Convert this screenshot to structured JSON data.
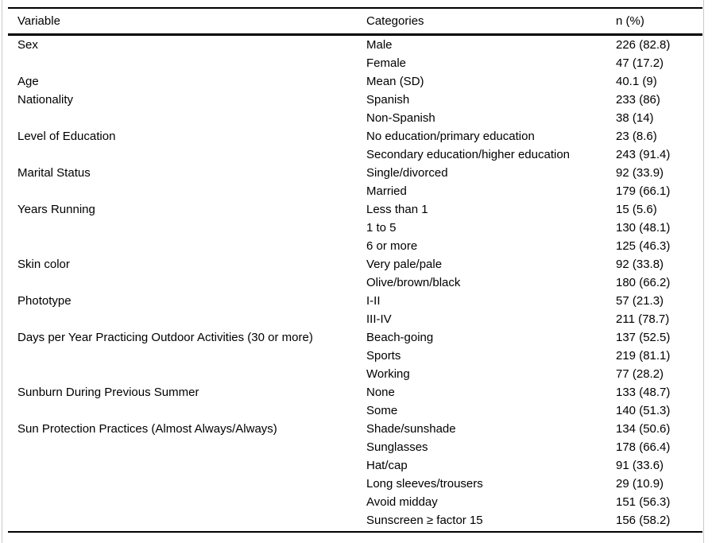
{
  "table": {
    "columns": [
      "Variable",
      "Categories",
      "n (%)"
    ],
    "rows": [
      {
        "variable": "Sex",
        "category": "Male",
        "n": "226 (82.8)"
      },
      {
        "variable": "",
        "category": "Female",
        "n": "47 (17.2)"
      },
      {
        "variable": "Age",
        "category": "Mean (SD)",
        "n": "40.1 (9)"
      },
      {
        "variable": "Nationality",
        "category": "Spanish",
        "n": "233 (86)"
      },
      {
        "variable": "",
        "category": "Non-Spanish",
        "n": "38 (14)"
      },
      {
        "variable": "Level of Education",
        "category": "No education/primary education",
        "n": "23 (8.6)"
      },
      {
        "variable": "",
        "category": "Secondary education/higher education",
        "n": "243 (91.4)"
      },
      {
        "variable": "Marital Status",
        "category": "Single/divorced",
        "n": "92 (33.9)"
      },
      {
        "variable": "",
        "category": "Married",
        "n": "179 (66.1)"
      },
      {
        "variable": "Years Running",
        "category": "Less than 1",
        "n": "15 (5.6)"
      },
      {
        "variable": "",
        "category": "1 to 5",
        "n": "130 (48.1)"
      },
      {
        "variable": "",
        "category": "6 or more",
        "n": "125 (46.3)"
      },
      {
        "variable": "Skin color",
        "category": "Very pale/pale",
        "n": "92 (33.8)"
      },
      {
        "variable": "",
        "category": "Olive/brown/black",
        "n": "180 (66.2)"
      },
      {
        "variable": "Phototype",
        "category": "I-II",
        "n": "57 (21.3)"
      },
      {
        "variable": "",
        "category": "III-IV",
        "n": "211 (78.7)"
      },
      {
        "variable": "Days per Year Practicing Outdoor Activities (30 or more)",
        "category": "Beach-going",
        "n": "137 (52.5)"
      },
      {
        "variable": "",
        "category": "Sports",
        "n": "219 (81.1)"
      },
      {
        "variable": "",
        "category": "Working",
        "n": "77 (28.2)"
      },
      {
        "variable": "Sunburn During Previous Summer",
        "category": "None",
        "n": "133 (48.7)"
      },
      {
        "variable": "",
        "category": "Some",
        "n": "140 (51.3)"
      },
      {
        "variable": "Sun Protection Practices (Almost Always/Always)",
        "category": "Shade/sunshade",
        "n": "134 (50.6)"
      },
      {
        "variable": "",
        "category": "Sunglasses",
        "n": "178 (66.4)"
      },
      {
        "variable": "",
        "category": "Hat/cap",
        "n": "91 (33.6)"
      },
      {
        "variable": "",
        "category": "Long sleeves/trousers",
        "n": "29 (10.9)"
      },
      {
        "variable": "",
        "category": "Avoid midday",
        "n": "151 (56.3)"
      },
      {
        "variable": "",
        "category": "Sunscreen ≥ factor 15",
        "n": "156 (58.2)"
      }
    ]
  }
}
